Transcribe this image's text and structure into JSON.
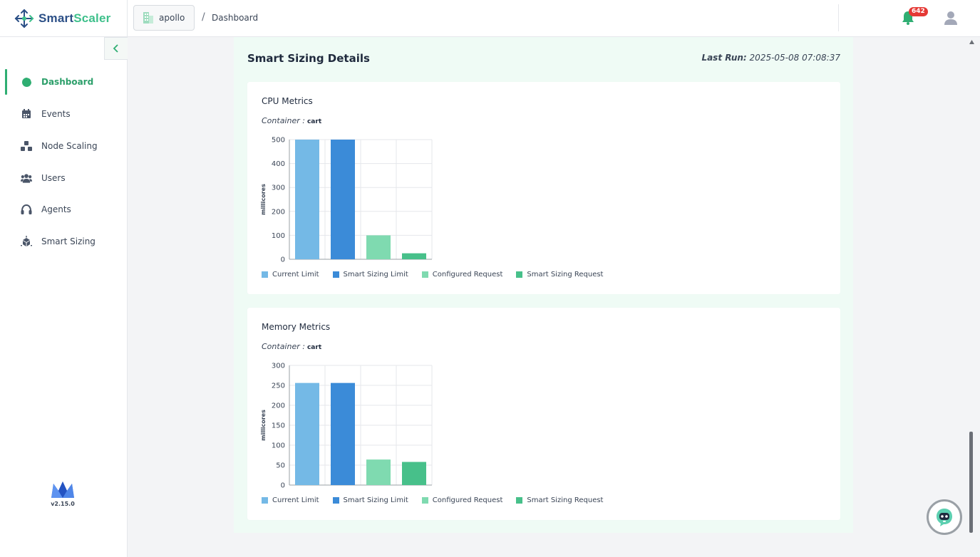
{
  "app": {
    "brand_part1": "Smart",
    "brand_part2": "Scaler",
    "version": "v2.15.0"
  },
  "header": {
    "cluster": "apollo",
    "breadcrumb_separator": "/",
    "breadcrumb_page": "Dashboard",
    "notification_count": "642"
  },
  "sidebar": {
    "items": [
      {
        "label": "Dashboard",
        "icon": "pie-chart-icon",
        "active": true
      },
      {
        "label": "Events",
        "icon": "calendar-icon",
        "active": false
      },
      {
        "label": "Node Scaling",
        "icon": "cubes-icon",
        "active": false
      },
      {
        "label": "Users",
        "icon": "users-icon",
        "active": false
      },
      {
        "label": "Agents",
        "icon": "headset-icon",
        "active": false
      },
      {
        "label": "Smart Sizing",
        "icon": "smart-sizing-icon",
        "active": false
      }
    ]
  },
  "main": {
    "title": "Smart Sizing Details",
    "last_run_label": "Last Run:",
    "last_run_value": "2025-05-08 07:08:37",
    "container_label": "Container :",
    "cpu_title": "CPU Metrics",
    "mem_title": "Memory Metrics"
  },
  "colors": {
    "current_limit": "#74b9e6",
    "smart_sizing_limit": "#3b8bd8",
    "configured_request": "#7fdab0",
    "smart_sizing_request": "#47c08a",
    "accent": "#2fae72"
  },
  "chart_data": [
    {
      "type": "bar",
      "title": "CPU Metrics",
      "container": "cart",
      "categories": [
        "Current Limit",
        "Smart Sizing Limit",
        "Configured Request",
        "Smart Sizing Request"
      ],
      "values": [
        500,
        500,
        100,
        25
      ],
      "ylabel": "millicores",
      "ylim": [
        0,
        500
      ],
      "yticks": [
        0,
        100,
        200,
        300,
        400,
        500
      ],
      "grid": true,
      "legend": [
        "Current Limit",
        "Smart Sizing Limit",
        "Configured Request",
        "Smart Sizing Request"
      ]
    },
    {
      "type": "bar",
      "title": "Memory Metrics",
      "container": "cart",
      "categories": [
        "Current Limit",
        "Smart Sizing Limit",
        "Configured Request",
        "Smart Sizing Request"
      ],
      "values": [
        256,
        256,
        64,
        58
      ],
      "ylabel": "millicores",
      "ylim": [
        0,
        300
      ],
      "yticks": [
        0,
        50,
        100,
        150,
        200,
        250,
        300
      ],
      "grid": true,
      "legend": [
        "Current Limit",
        "Smart Sizing Limit",
        "Configured Request",
        "Smart Sizing Request"
      ]
    }
  ]
}
